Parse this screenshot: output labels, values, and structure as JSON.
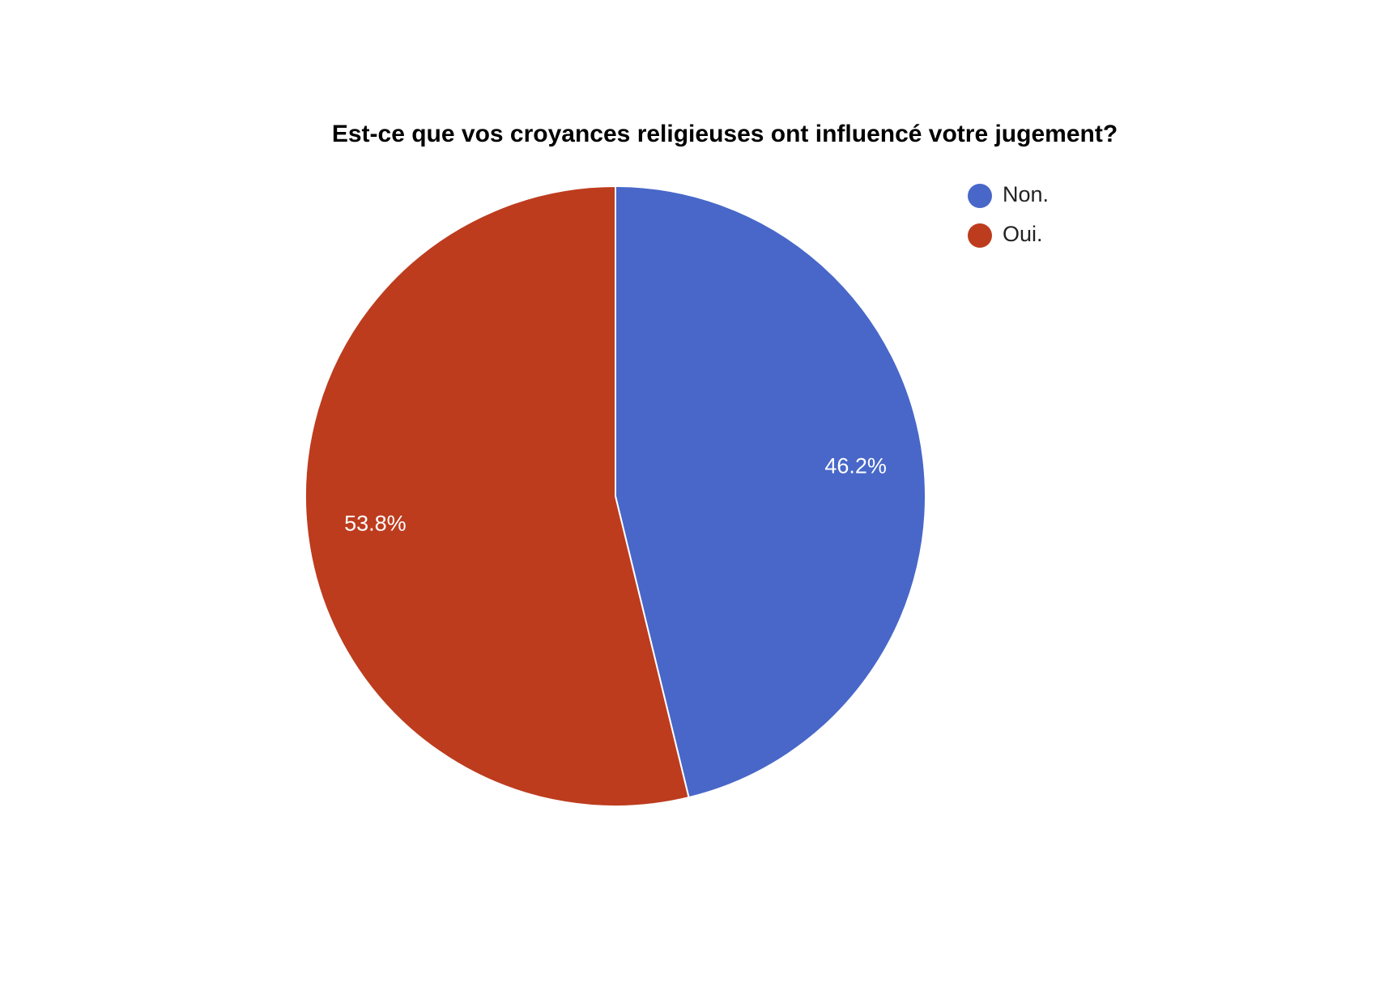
{
  "chart_data": {
    "type": "pie",
    "title": "Est-ce que vos croyances religieuses ont influencé votre jugement?",
    "slices": [
      {
        "label": "Non.",
        "value": 46.2,
        "display": "46.2%",
        "color": "#4867C8"
      },
      {
        "label": "Oui.",
        "value": 53.8,
        "display": "53.8%",
        "color": "#BD3C1E"
      }
    ],
    "start_direction": "top",
    "direction": "clockwise",
    "legend_placement": "top-right",
    "slice_border_color": "#ffffff"
  }
}
